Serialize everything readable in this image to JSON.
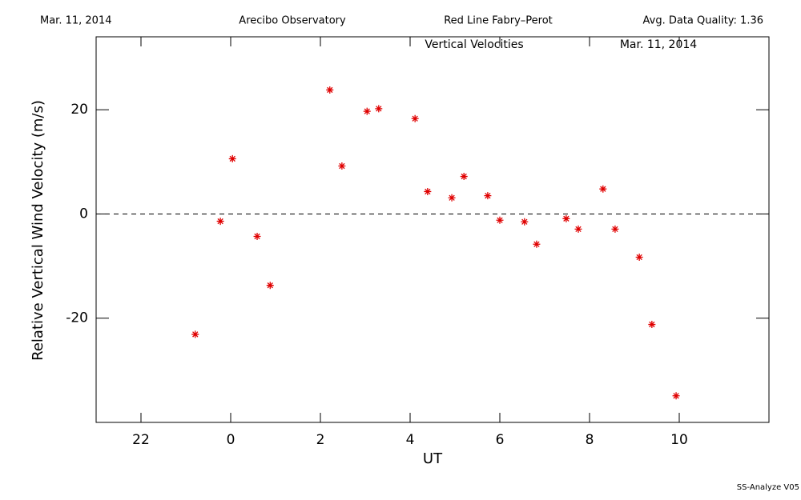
{
  "header": {
    "date": "Mar. 11, 2014",
    "site": "Arecibo Observatory",
    "instrument": "Red Line Fabry–Perot",
    "quality": "Avg. Data Quality: 1.36"
  },
  "footer": "SS-Analyze V05",
  "chart_data": {
    "type": "scatter",
    "title": "Vertical Velocities",
    "subtitle": "Mar. 11, 2014",
    "x_label": "UT",
    "y_label": "Relative Vertical Wind Velocity (m/s)",
    "color": "#e00000",
    "reference_line": 0,
    "xlim": [
      -3,
      12
    ],
    "xticks": [
      {
        "value": -2,
        "label": "22"
      },
      0,
      2,
      4,
      6,
      8,
      10
    ],
    "ylim": [
      -40,
      34
    ],
    "yticks": [
      -20,
      0,
      20
    ],
    "x": [
      -0.79,
      -0.23,
      0.04,
      0.59,
      0.88,
      2.21,
      2.48,
      3.04,
      3.3,
      4.11,
      4.39,
      4.93,
      5.2,
      5.73,
      6.0,
      6.55,
      6.82,
      7.48,
      7.75,
      8.3,
      8.57,
      9.11,
      9.39,
      9.93
    ],
    "values": [
      -23.1,
      -1.4,
      10.6,
      -4.3,
      -13.7,
      23.8,
      9.2,
      19.7,
      20.2,
      18.3,
      4.3,
      3.1,
      7.2,
      3.5,
      -1.2,
      -1.5,
      -5.8,
      -0.9,
      -2.9,
      4.8,
      -2.9,
      -8.3,
      -21.2,
      -34.9
    ]
  }
}
